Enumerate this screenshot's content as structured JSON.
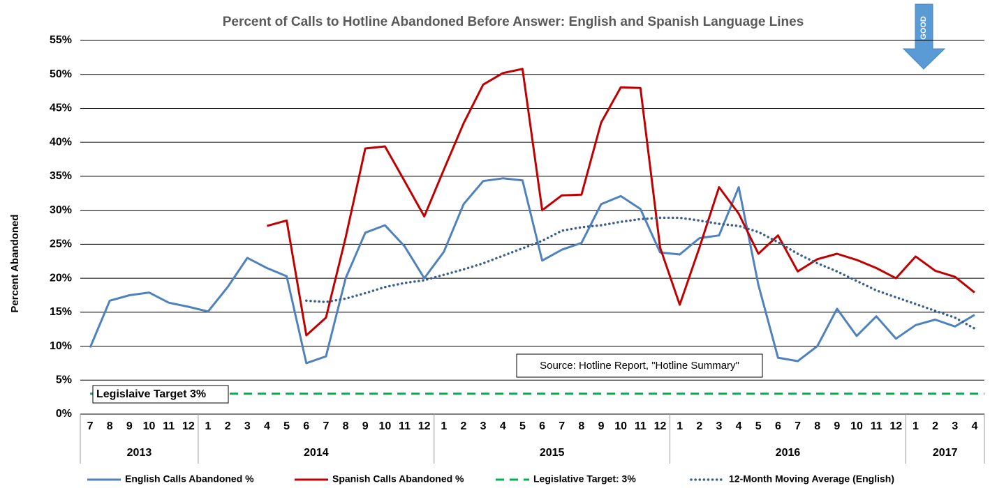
{
  "chart_data": {
    "type": "line",
    "title": "Percent of Calls to Hotline Abandoned Before Answer: English and Spanish Language Lines",
    "y_label": "Percent Abandoned",
    "categories": [
      "7",
      "8",
      "9",
      "10",
      "11",
      "12",
      "1",
      "2",
      "3",
      "4",
      "5",
      "6",
      "7",
      "8",
      "9",
      "10",
      "11",
      "12",
      "1",
      "2",
      "3",
      "4",
      "5",
      "6",
      "7",
      "8",
      "9",
      "10",
      "11",
      "12",
      "1",
      "2",
      "3",
      "4",
      "5",
      "6",
      "7",
      "8",
      "9",
      "10",
      "11",
      "12",
      "1",
      "2",
      "3",
      "4"
    ],
    "years": [
      "2013",
      "2014",
      "2015",
      "2016",
      "2017"
    ],
    "series": [
      {
        "name": "English Calls Abandoned %",
        "color": "#4f81bd",
        "style": "solid",
        "values": [
          9.8,
          16.7,
          17.5,
          17.9,
          16.4,
          15.8,
          15.1,
          18.7,
          23.0,
          21.5,
          20.3,
          7.5,
          8.5,
          20.0,
          26.7,
          27.8,
          24.7,
          20.0,
          23.9,
          30.9,
          34.3,
          34.7,
          34.4,
          22.6,
          24.2,
          25.2,
          30.9,
          32.1,
          30.2,
          23.8,
          23.5,
          25.9,
          26.3,
          33.4,
          19.0,
          8.3,
          7.8,
          10.0,
          15.5,
          11.5,
          14.4,
          11.1,
          13.1,
          13.9,
          12.9,
          14.6
        ]
      },
      {
        "name": "Spanish Calls Abandoned %",
        "color": "#c00000",
        "style": "solid",
        "values": [
          null,
          null,
          null,
          null,
          null,
          null,
          null,
          null,
          null,
          27.7,
          28.5,
          11.6,
          14.2,
          26.0,
          39.1,
          39.4,
          34.3,
          29.1,
          36.0,
          42.8,
          48.5,
          50.2,
          50.8,
          30.0,
          32.2,
          32.3,
          42.9,
          48.1,
          48.0,
          24.5,
          16.1,
          24.5,
          33.4,
          29.5,
          23.6,
          26.3,
          21.0,
          22.8,
          23.6,
          22.7,
          21.5,
          20.0,
          23.2,
          21.1,
          20.2,
          17.9
        ]
      },
      {
        "name": "12-Month Moving Average (English)",
        "color": "#3a5f8f",
        "style": "dotted",
        "values": [
          null,
          null,
          null,
          null,
          null,
          null,
          null,
          null,
          null,
          null,
          null,
          16.7,
          16.5,
          17.0,
          17.8,
          18.7,
          19.3,
          19.7,
          20.5,
          21.3,
          22.2,
          23.3,
          24.4,
          25.5,
          27.0,
          27.5,
          27.8,
          28.3,
          28.7,
          28.9,
          28.9,
          28.5,
          28.0,
          27.7,
          26.8,
          25.3,
          23.6,
          22.2,
          21.0,
          19.6,
          18.2,
          17.2,
          16.2,
          15.2,
          14.2,
          12.6
        ]
      }
    ],
    "target": {
      "name": "Legislative Target: 3%",
      "label": "Legislaive Target 3%",
      "value": 3,
      "color": "#00b050"
    },
    "source": "Source: Hotline Report, \"Hotline Summary\"",
    "arrow_label": "GOOD",
    "ylim": [
      0,
      55
    ],
    "yticks": [
      {
        "value": 0,
        "label": "0%"
      },
      {
        "value": 5,
        "label": "5%"
      },
      {
        "value": 10,
        "label": "10%"
      },
      {
        "value": 15,
        "label": "15%"
      },
      {
        "value": 20,
        "label": "20%"
      },
      {
        "value": 25,
        "label": "25%"
      },
      {
        "value": 30,
        "label": "30%"
      },
      {
        "value": 35,
        "label": "35%"
      },
      {
        "value": 40,
        "label": "40%"
      },
      {
        "value": 45,
        "label": "45%"
      },
      {
        "value": 50,
        "label": "50%"
      },
      {
        "value": 55,
        "label": "55%"
      }
    ],
    "grid": true,
    "legend": "bottom"
  }
}
